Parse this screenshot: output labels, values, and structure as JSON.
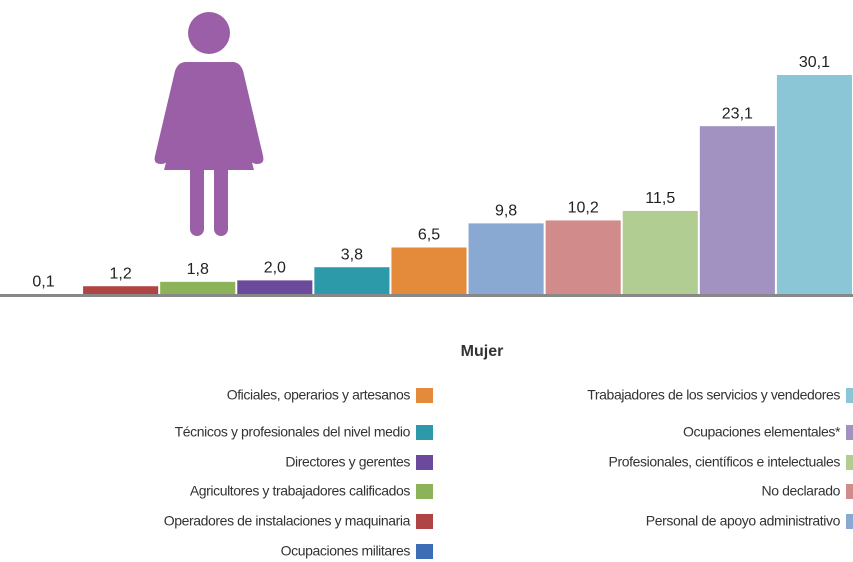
{
  "chart_data": {
    "type": "bar",
    "legend_title": "Mujer",
    "categories": [
      "Ocupaciones militares",
      "Operadores de instalaciones y maquinaria",
      "Agricultores y trabajadores calificados",
      "Directores y gerentes",
      "Técnicos y profesionales del nivel medio",
      "Oficiales, operarios y artesanos",
      "Personal de apoyo administrativo",
      "No declarado",
      "Profesionales, científicos e intelectuales",
      "Ocupaciones elementales*",
      "Trabajadores de los servicios y vendedores"
    ],
    "values": [
      0.1,
      1.2,
      1.8,
      2.0,
      3.8,
      6.5,
      9.8,
      10.2,
      11.5,
      23.1,
      30.1
    ],
    "value_labels": [
      "0,1",
      "1,2",
      "1,8",
      "2,0",
      "3,8",
      "6,5",
      "9,8",
      "10,2",
      "11,5",
      "23,1",
      "30,1"
    ],
    "colors": [
      "#3d6eb5",
      "#b04444",
      "#8cb35a",
      "#6b4a9b",
      "#2c9aa9",
      "#e38b3b",
      "#8aa9d2",
      "#d28b8b",
      "#b2cd92",
      "#a192c2",
      "#8ac6d6"
    ]
  }
}
